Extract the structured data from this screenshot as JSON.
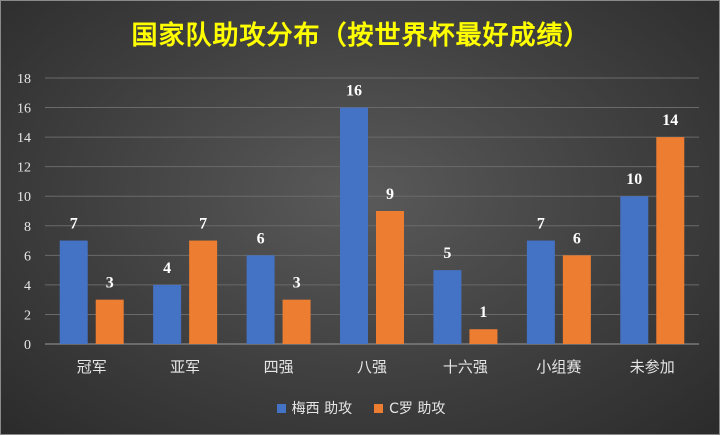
{
  "chart_data": {
    "type": "bar",
    "title": "国家队助攻分布（按世界杯最好成绩）",
    "categories": [
      "冠军",
      "亚军",
      "四强",
      "八强",
      "十六强",
      "小组赛",
      "未参加"
    ],
    "series": [
      {
        "name": "梅西 助攻",
        "values": [
          7,
          4,
          6,
          16,
          5,
          7,
          10
        ],
        "color": "#4472c4"
      },
      {
        "name": "C罗 助攻",
        "values": [
          3,
          7,
          3,
          9,
          1,
          6,
          14
        ],
        "color": "#ed7d31"
      }
    ],
    "ylim": [
      0,
      18
    ],
    "yticks": [
      0,
      2,
      4,
      6,
      8,
      10,
      12,
      14,
      16,
      18
    ],
    "grid": true,
    "legend_position": "bottom"
  }
}
